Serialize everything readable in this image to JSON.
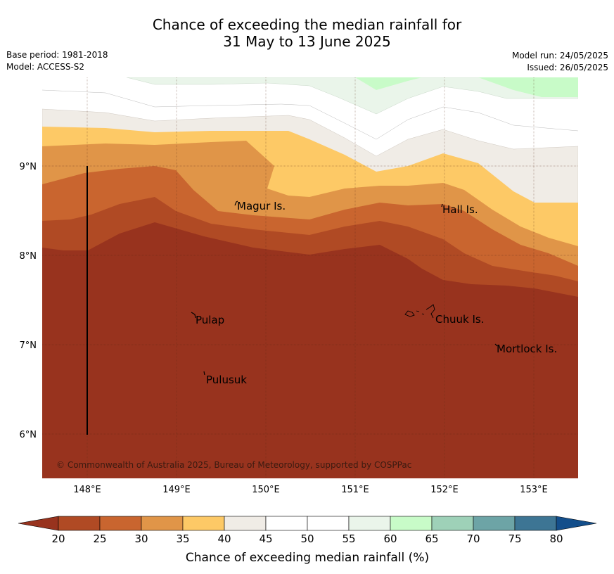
{
  "title": {
    "line1": "Chance of exceeding the median rainfall for",
    "line2": "31 May to 13 June 2025"
  },
  "meta": {
    "base_period": "Base period: 1981-2018",
    "model": "Model: ACCESS-S2",
    "model_run": "Model run: 24/05/2025",
    "issued": "Issued: 26/05/2025"
  },
  "map": {
    "lon_ticks": [
      "148°E",
      "149°E",
      "150°E",
      "151°E",
      "152°E",
      "153°E"
    ],
    "lat_ticks": [
      "9°N",
      "8°N",
      "7°N",
      "6°N"
    ],
    "places": [
      {
        "name": "Magur Is."
      },
      {
        "name": "Hall Is."
      },
      {
        "name": "Pulap"
      },
      {
        "name": "Chuuk Is."
      },
      {
        "name": "Mortlock Is."
      },
      {
        "name": "Pulusuk"
      }
    ],
    "copyright": "© Commonwealth of Australia 2025, Bureau of Meteorology, supported by COSPPac"
  },
  "colorbar": {
    "title": "Chance of exceeding median rainfall (%)",
    "labels": [
      "20",
      "25",
      "30",
      "35",
      "40",
      "45",
      "50",
      "55",
      "60",
      "65",
      "70",
      "75",
      "80"
    ],
    "colors": [
      "#b04a24",
      "#c9652f",
      "#e09548",
      "#fdc966",
      "#f0ece6",
      "#ffffff",
      "#ffffff",
      "#eaf5ea",
      "#c8fbc8",
      "#9ed1b8",
      "#6da4a6",
      "#3d7594"
    ],
    "under_color": "#98331e",
    "over_color": "#134e8b"
  }
}
